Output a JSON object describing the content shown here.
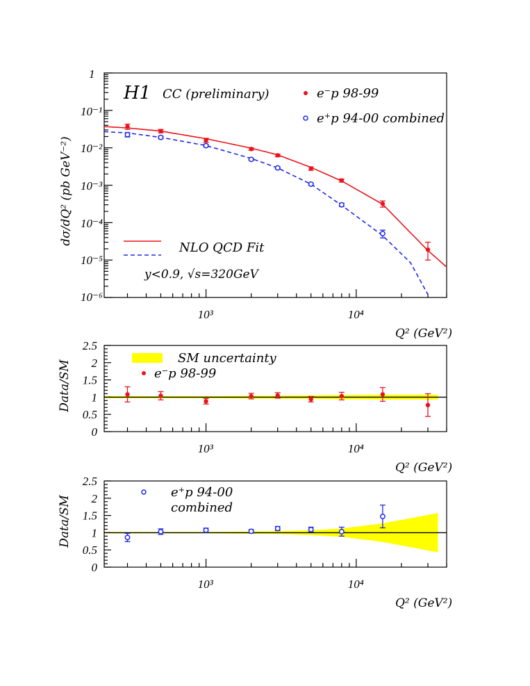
{
  "chart_data": [
    {
      "type": "scatter",
      "experiment_label": "H1",
      "title": "CC (preliminary)",
      "ylabel": "dσ/dQ² (pb GeV⁻²)",
      "xlabel": "Q² (GeV²)",
      "x_scale": "log",
      "y_scale": "log",
      "xlim": [
        210,
        40000
      ],
      "ylim": [
        1e-06,
        1
      ],
      "x_tick_labels": [
        "10³",
        "10⁴"
      ],
      "y_tick_labels": [
        "1",
        "10⁻¹",
        "10⁻²",
        "10⁻³",
        "10⁻⁴",
        "10⁻⁵",
        "10⁻⁶"
      ],
      "annotation_cuts": "y<0.9,  √s=320GeV",
      "fit_legend": "NLO QCD Fit",
      "series": [
        {
          "name": "e⁻p 98-99",
          "color": "#e8141c",
          "marker": "filled-circle",
          "x": [
            300,
            500,
            1000,
            2000,
            3000,
            5000,
            8000,
            15000,
            30000
          ],
          "y": [
            0.037,
            0.028,
            0.016,
            0.0093,
            0.0063,
            0.0028,
            0.00134,
            0.00032,
            1.9e-05
          ],
          "y_err_up": [
            0.006,
            0.003,
            0.002,
            0.0007,
            0.0005,
            0.0003,
            0.00013,
            6e-05,
            1.1e-05
          ],
          "y_err_down": [
            0.006,
            0.003,
            0.002,
            0.0007,
            0.0005,
            0.0003,
            0.00013,
            6e-05,
            9e-06
          ]
        },
        {
          "name": "e⁺p 94-00 combined",
          "color": "#1e28e6",
          "marker": "open-circle",
          "x": [
            300,
            500,
            1000,
            2000,
            3000,
            5000,
            8000,
            15000
          ],
          "y": [
            0.0225,
            0.019,
            0.0114,
            0.0049,
            0.0029,
            0.00107,
            0.0003,
            5.1e-05
          ],
          "y_err_up": [
            0.003,
            0.0015,
            0.0008,
            0.0003,
            0.0002,
            7e-05,
            3e-05,
            1.2e-05
          ],
          "y_err_down": [
            0.003,
            0.0015,
            0.0008,
            0.0003,
            0.0002,
            7e-05,
            3e-05,
            1.2e-05
          ]
        }
      ],
      "fit_curves": [
        {
          "color": "#e8141c",
          "style": "solid",
          "x": [
            210,
            300,
            500,
            1000,
            2000,
            3000,
            5000,
            8000,
            15000,
            30000,
            40000
          ],
          "y": [
            0.037,
            0.034,
            0.028,
            0.0175,
            0.0098,
            0.0065,
            0.003,
            0.0013,
            0.00031,
            1.8e-05,
            6.5e-06
          ]
        },
        {
          "color": "#1e28e6",
          "style": "dashed",
          "x": [
            210,
            300,
            500,
            1000,
            2000,
            3000,
            5000,
            8000,
            15000,
            23000,
            30000
          ],
          "y": [
            0.027,
            0.025,
            0.019,
            0.0115,
            0.0052,
            0.0029,
            0.00107,
            0.00029,
            4.5e-05,
            8.5e-06,
            1.2e-06
          ]
        }
      ]
    },
    {
      "type": "scatter",
      "ylabel": "Data/SM",
      "xlabel": "Q² (GeV²)",
      "x_scale": "log",
      "xlim": [
        210,
        40000
      ],
      "ylim": [
        0,
        2.5
      ],
      "x_tick_labels": [
        "10³",
        "10⁴"
      ],
      "y_tick_labels": [
        "0",
        "0.5",
        "1",
        "1.5",
        "2",
        "2.5"
      ],
      "band_legend": "SM uncertainty",
      "band": {
        "color": "#ffff00",
        "x": [
          210,
          1000,
          5000,
          8000,
          15000,
          30000,
          35000
        ],
        "lower": [
          0.97,
          0.97,
          0.95,
          0.94,
          0.93,
          0.93,
          0.93
        ],
        "upper": [
          1.03,
          1.03,
          1.05,
          1.06,
          1.07,
          1.07,
          1.07
        ]
      },
      "series": [
        {
          "name": "e⁻p 98-99",
          "color": "#e8141c",
          "marker": "filled-circle",
          "x": [
            300,
            500,
            1000,
            2000,
            3000,
            5000,
            8000,
            15000,
            30000
          ],
          "y": [
            1.08,
            1.04,
            0.88,
            1.03,
            1.05,
            0.94,
            1.03,
            1.08,
            0.77
          ],
          "err": [
            0.22,
            0.12,
            0.08,
            0.08,
            0.08,
            0.08,
            0.11,
            0.2,
            0.33
          ]
        }
      ]
    },
    {
      "type": "scatter",
      "ylabel": "Data/SM",
      "xlabel": "Q² (GeV²)",
      "x_scale": "log",
      "xlim": [
        210,
        40000
      ],
      "ylim": [
        0,
        2.5
      ],
      "x_tick_labels": [
        "10³",
        "10⁴"
      ],
      "y_tick_labels": [
        "0",
        "0.5",
        "1",
        "1.5",
        "2",
        "2.5"
      ],
      "band": {
        "color": "#ffff00",
        "x": [
          210,
          1000,
          3000,
          5000,
          8000,
          15000,
          25000,
          35000
        ],
        "lower": [
          0.98,
          0.98,
          0.96,
          0.93,
          0.88,
          0.73,
          0.55,
          0.43
        ],
        "upper": [
          1.02,
          1.02,
          1.04,
          1.07,
          1.12,
          1.27,
          1.45,
          1.57
        ]
      },
      "series": [
        {
          "name": "e⁺p 94-00",
          "name_line2": "combined",
          "color": "#1e28e6",
          "marker": "open-circle",
          "x": [
            300,
            500,
            1000,
            2000,
            3000,
            5000,
            8000,
            15000
          ],
          "y": [
            0.86,
            1.03,
            1.07,
            1.04,
            1.12,
            1.09,
            1.03,
            1.47
          ],
          "err": [
            0.12,
            0.08,
            0.06,
            0.05,
            0.06,
            0.07,
            0.13,
            0.33
          ]
        }
      ]
    }
  ]
}
